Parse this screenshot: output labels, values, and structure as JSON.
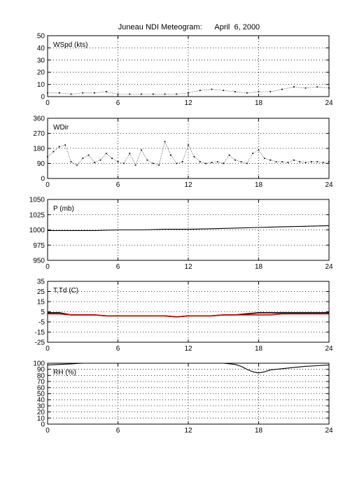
{
  "title": "Juneau NDI Meteogram:      April  6, 2000",
  "colors": {
    "background": "#ffffff",
    "axes": "#000000",
    "grid": "#000000",
    "trace": "#000000",
    "dewpoint": "#cc0000"
  },
  "chart_data": [
    {
      "type": "scatter",
      "label": "WSpd (kts)",
      "xlim": [
        0,
        24
      ],
      "ylim": [
        0,
        50
      ],
      "xticks": [
        0,
        6,
        12,
        18,
        24
      ],
      "yticks": [
        0,
        10,
        20,
        30,
        40,
        50
      ],
      "grid": true,
      "series": [
        {
          "x": [
            0,
            1,
            2,
            3,
            4,
            5,
            6,
            7,
            8,
            9,
            10,
            11,
            12,
            13,
            14,
            15,
            16,
            17,
            18,
            19,
            20,
            21,
            22,
            23,
            24
          ],
          "y": [
            3,
            3,
            2,
            3,
            3,
            4,
            2,
            2,
            2,
            2,
            2,
            2,
            3,
            5,
            6,
            5,
            4,
            3,
            4,
            4,
            6,
            8,
            7,
            8,
            7
          ]
        }
      ]
    },
    {
      "type": "scatter",
      "label": "WDir",
      "xlim": [
        0,
        24
      ],
      "ylim": [
        0,
        360
      ],
      "xticks": [
        0,
        6,
        12,
        18,
        24
      ],
      "yticks": [
        0,
        90,
        180,
        270,
        360
      ],
      "grid": true,
      "series": [
        {
          "x": [
            0,
            0.5,
            1,
            1.5,
            2,
            2.5,
            3,
            3.5,
            4,
            4.5,
            5,
            5.5,
            6,
            6.5,
            7,
            7.5,
            8,
            8.5,
            9,
            9.5,
            10,
            10.5,
            11,
            11.5,
            12,
            12.5,
            13,
            13.5,
            14,
            14.5,
            15,
            15.5,
            16,
            16.5,
            17,
            17.5,
            18,
            18.5,
            19,
            19.5,
            20,
            20.5,
            21,
            21.5,
            22,
            22.5,
            23,
            23.5,
            24
          ],
          "y": [
            130,
            160,
            190,
            200,
            100,
            80,
            120,
            140,
            95,
            110,
            150,
            120,
            100,
            90,
            150,
            80,
            170,
            110,
            90,
            80,
            220,
            140,
            90,
            100,
            200,
            130,
            100,
            90,
            95,
            100,
            90,
            140,
            110,
            100,
            90,
            150,
            170,
            120,
            110,
            100,
            100,
            95,
            110,
            100,
            95,
            100,
            100,
            95,
            100
          ]
        }
      ]
    },
    {
      "type": "line",
      "label": "P (mb)",
      "xlim": [
        0,
        24
      ],
      "ylim": [
        950,
        1050
      ],
      "xticks": [
        0,
        6,
        12,
        18,
        24
      ],
      "yticks": [
        950,
        975,
        1000,
        1025,
        1050
      ],
      "grid": true,
      "series": [
        {
          "x": [
            0,
            2,
            4,
            6,
            8,
            10,
            12,
            14,
            16,
            18,
            20,
            22,
            24
          ],
          "y": [
            999,
            999,
            999,
            1000,
            1000,
            1001,
            1001,
            1002,
            1003,
            1004,
            1005,
            1006,
            1007
          ]
        }
      ]
    },
    {
      "type": "line",
      "label": "T,Td (C)",
      "xlim": [
        0,
        24
      ],
      "ylim": [
        -25,
        35
      ],
      "xticks": [
        0,
        6,
        12,
        18,
        24
      ],
      "yticks": [
        -25,
        -15,
        -5,
        5,
        15,
        25,
        35
      ],
      "grid": true,
      "series": [
        {
          "x": [
            0,
            1,
            2,
            3,
            4,
            5,
            6,
            7,
            8,
            9,
            10,
            11,
            12,
            13,
            14,
            15,
            16,
            17,
            18,
            19,
            20,
            21,
            22,
            23,
            24
          ],
          "y": [
            4,
            4,
            2,
            2,
            2,
            1,
            1,
            1,
            1,
            1,
            1,
            0,
            1,
            1,
            1,
            2,
            2,
            3,
            4,
            4,
            4,
            4,
            4,
            4,
            4
          ]
        },
        {
          "x": [
            0,
            1,
            2,
            3,
            4,
            5,
            6,
            7,
            8,
            9,
            10,
            11,
            12,
            13,
            14,
            15,
            16,
            17,
            18,
            19,
            20,
            21,
            22,
            23,
            24
          ],
          "y": [
            3,
            3,
            2,
            2,
            2,
            1,
            1,
            1,
            1,
            1,
            1,
            0,
            1,
            1,
            1,
            2,
            2,
            2,
            2,
            2,
            3,
            3,
            3,
            3,
            3
          ]
        }
      ]
    },
    {
      "type": "line",
      "label": "RH (%)",
      "xlim": [
        0,
        24
      ],
      "ylim": [
        0,
        100
      ],
      "xticks": [
        0,
        6,
        12,
        18,
        24
      ],
      "yticks": [
        0,
        10,
        20,
        30,
        40,
        50,
        60,
        70,
        80,
        90,
        100
      ],
      "grid": true,
      "series": [
        {
          "x": [
            0,
            1,
            2,
            3,
            4,
            5,
            6,
            7,
            8,
            9,
            10,
            11,
            12,
            13,
            14,
            15,
            16,
            16.5,
            17,
            17.5,
            18,
            18.5,
            19,
            20,
            21,
            22,
            23,
            24
          ],
          "y": [
            97,
            98,
            99,
            100,
            100,
            100,
            100,
            100,
            100,
            100,
            100,
            100,
            100,
            100,
            100,
            100,
            98,
            95,
            90,
            86,
            84,
            86,
            89,
            91,
            93,
            95,
            96,
            97
          ]
        }
      ]
    }
  ]
}
